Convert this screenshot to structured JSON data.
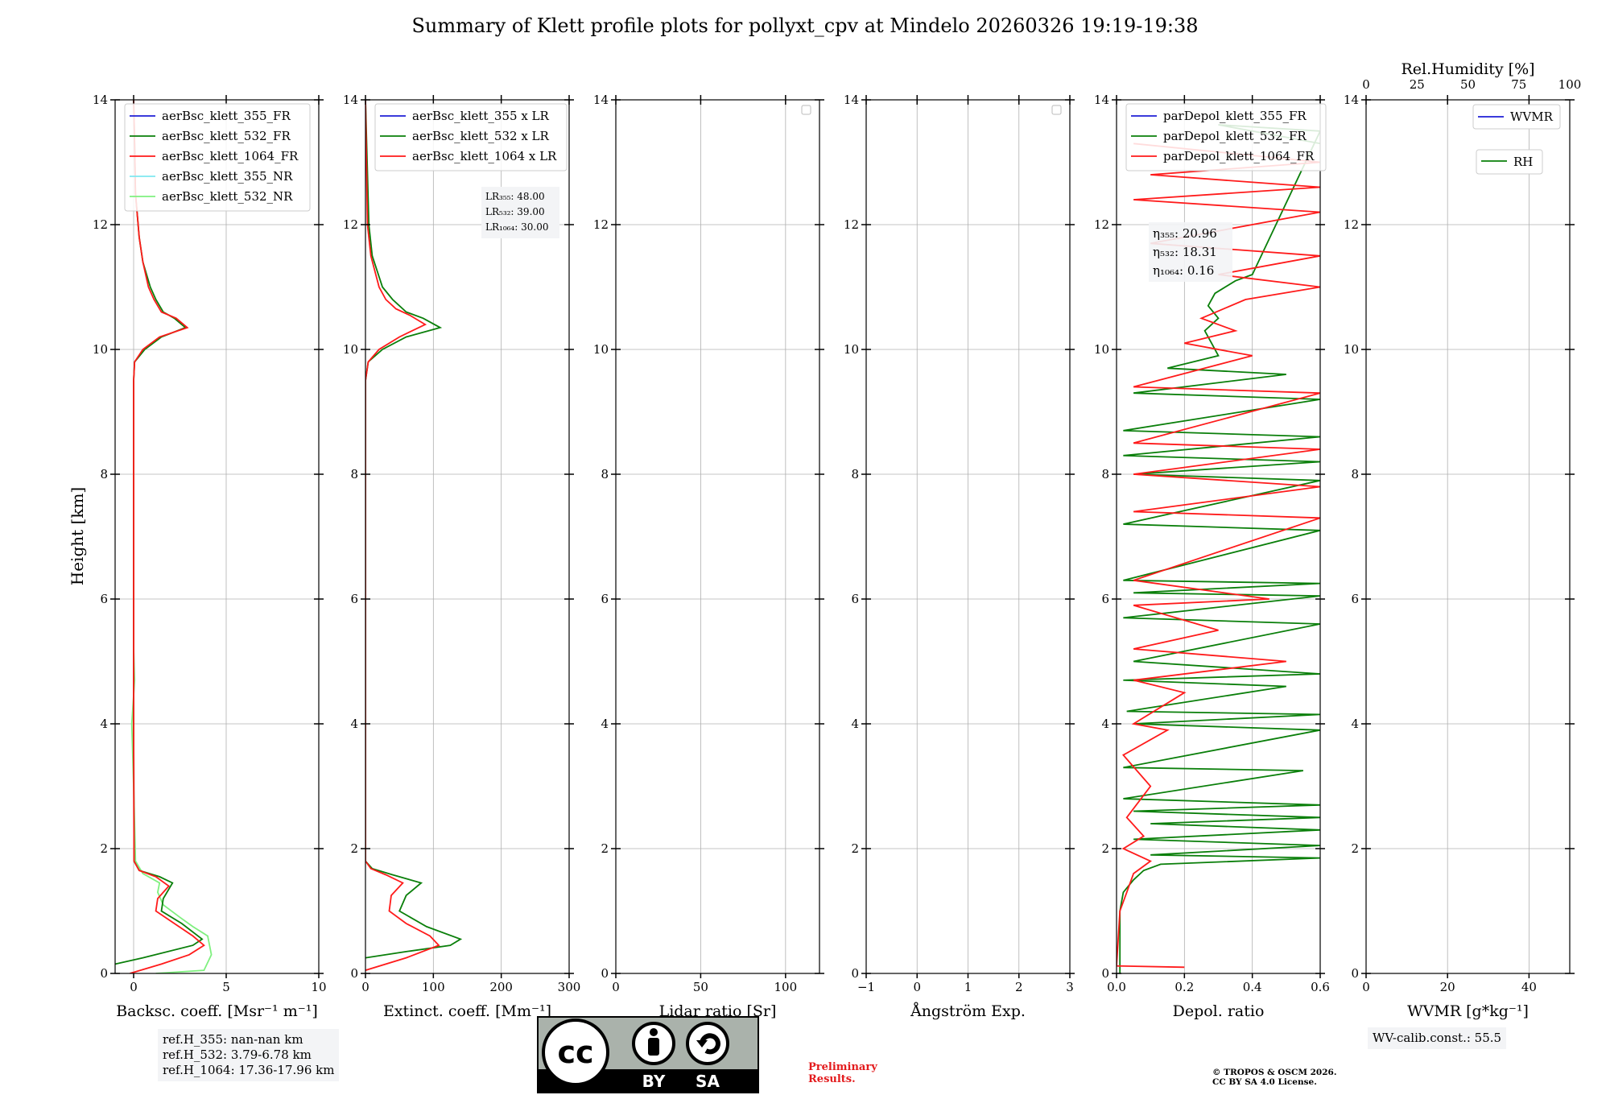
{
  "title": "Summary of Klett profile plots for pollyxt_cpv at Mindelo 20260326 19:19-19:38",
  "ylabel": "Height [km]",
  "colors": {
    "c355": "#1f1fd6",
    "c532": "#0a7f0a",
    "c1064": "#ff1a1a",
    "c355nr": "#7fe8f0",
    "c532nr": "#7ff07f"
  },
  "chart_data": [
    {
      "type": "line",
      "panel": "backscatter",
      "xlabel": "Backsc. coeff. [Msr⁻¹ m⁻¹]",
      "xlim": [
        -1,
        10
      ],
      "xticks": [
        0,
        5,
        10
      ],
      "ylim": [
        0,
        14
      ],
      "yticks": [
        0,
        2,
        4,
        6,
        8,
        10,
        12,
        14
      ],
      "legend": [
        "aerBsc_klett_355_FR",
        "aerBsc_klett_532_FR",
        "aerBsc_klett_1064_FR",
        "aerBsc_klett_355_NR",
        "aerBsc_klett_532_NR"
      ],
      "series": [
        {
          "name": "aerBsc_klett_532_NR",
          "color": "c532nr",
          "points": [
            [
              1.2,
              0
            ],
            [
              3.8,
              0.05
            ],
            [
              4.2,
              0.3
            ],
            [
              4.0,
              0.6
            ],
            [
              3.2,
              0.75
            ],
            [
              2.5,
              0.9
            ],
            [
              1.6,
              1.1
            ],
            [
              1.3,
              1.3
            ],
            [
              1.4,
              1.45
            ],
            [
              0.5,
              1.6
            ],
            [
              0.1,
              1.8
            ],
            [
              0.0,
              3
            ],
            [
              -0.1,
              4
            ],
            [
              0.05,
              4.7
            ],
            [
              0,
              5.2
            ]
          ]
        },
        {
          "name": "aerBsc_klett_532_FR",
          "color": "c532",
          "points": [
            [
              -1,
              0.15
            ],
            [
              0.5,
              0.25
            ],
            [
              3.2,
              0.45
            ],
            [
              3.7,
              0.55
            ],
            [
              2.6,
              0.8
            ],
            [
              1.5,
              1.0
            ],
            [
              1.6,
              1.2
            ],
            [
              2.1,
              1.45
            ],
            [
              1.4,
              1.55
            ],
            [
              0.3,
              1.65
            ],
            [
              0.02,
              1.8
            ],
            [
              0,
              4
            ],
            [
              0,
              8
            ],
            [
              0,
              9.5
            ],
            [
              0.05,
              9.8
            ],
            [
              0.6,
              10.0
            ],
            [
              1.5,
              10.2
            ],
            [
              2.8,
              10.35
            ],
            [
              2.2,
              10.5
            ],
            [
              1.6,
              10.6
            ],
            [
              1.2,
              10.8
            ],
            [
              0.9,
              11.0
            ],
            [
              0.5,
              11.4
            ],
            [
              0.3,
              11.8
            ],
            [
              0.1,
              12.5
            ],
            [
              0.05,
              13.3
            ],
            [
              0,
              14
            ]
          ]
        },
        {
          "name": "aerBsc_klett_1064_FR",
          "color": "c1064",
          "points": [
            [
              -0.2,
              0
            ],
            [
              1.5,
              0.15
            ],
            [
              3.0,
              0.3
            ],
            [
              3.8,
              0.45
            ],
            [
              3.2,
              0.6
            ],
            [
              2.2,
              0.8
            ],
            [
              1.2,
              1.0
            ],
            [
              1.3,
              1.2
            ],
            [
              1.9,
              1.4
            ],
            [
              1.2,
              1.55
            ],
            [
              0.3,
              1.65
            ],
            [
              0.02,
              1.8
            ],
            [
              0,
              4
            ],
            [
              0,
              8
            ],
            [
              0,
              9.5
            ],
            [
              0.05,
              9.8
            ],
            [
              0.5,
              10.0
            ],
            [
              1.4,
              10.2
            ],
            [
              2.9,
              10.35
            ],
            [
              2.3,
              10.5
            ],
            [
              1.5,
              10.6
            ],
            [
              1.1,
              10.8
            ],
            [
              0.8,
              11.0
            ],
            [
              0.5,
              11.4
            ],
            [
              0.3,
              11.8
            ],
            [
              0.1,
              12.5
            ],
            [
              0.05,
              13.3
            ],
            [
              0,
              14
            ]
          ]
        }
      ]
    },
    {
      "type": "line",
      "panel": "extinction",
      "xlabel": "Extinct. coeff. [Mm⁻¹]",
      "xlim": [
        0,
        300
      ],
      "xticks": [
        0,
        100,
        200,
        300
      ],
      "ylim": [
        0,
        14
      ],
      "yticks": [
        0,
        2,
        4,
        6,
        8,
        10,
        12,
        14
      ],
      "legend": [
        "aerBsc_klett_355 x LR",
        "aerBsc_klett_532 x LR",
        "aerBsc_klett_1064 x LR"
      ],
      "lr_labels": [
        "LR₃₅₅: 48.00",
        "LR₅₃₂: 39.00",
        "LR₁₀₆₄: 30.00"
      ],
      "series": [
        {
          "name": "aerBsc_klett_532 x LR",
          "color": "c532",
          "points": [
            [
              0,
              0.25
            ],
            [
              60,
              0.35
            ],
            [
              125,
              0.45
            ],
            [
              140,
              0.55
            ],
            [
              90,
              0.75
            ],
            [
              50,
              1.0
            ],
            [
              60,
              1.25
            ],
            [
              82,
              1.45
            ],
            [
              40,
              1.58
            ],
            [
              10,
              1.68
            ],
            [
              0,
              1.8
            ],
            [
              0,
              8
            ],
            [
              0,
              9.5
            ],
            [
              4,
              9.8
            ],
            [
              25,
              10.0
            ],
            [
              60,
              10.2
            ],
            [
              110,
              10.35
            ],
            [
              85,
              10.5
            ],
            [
              60,
              10.6
            ],
            [
              40,
              10.8
            ],
            [
              25,
              11.0
            ],
            [
              10,
              11.5
            ],
            [
              5,
              12.0
            ],
            [
              0,
              14
            ]
          ]
        },
        {
          "name": "aerBsc_klett_1064 x LR",
          "color": "c1064",
          "points": [
            [
              0,
              0.05
            ],
            [
              60,
              0.25
            ],
            [
              108,
              0.45
            ],
            [
              95,
              0.6
            ],
            [
              60,
              0.8
            ],
            [
              35,
              1.0
            ],
            [
              38,
              1.25
            ],
            [
              55,
              1.45
            ],
            [
              30,
              1.58
            ],
            [
              8,
              1.68
            ],
            [
              0,
              1.8
            ],
            [
              0,
              8
            ],
            [
              0,
              9.5
            ],
            [
              4,
              9.8
            ],
            [
              20,
              10.0
            ],
            [
              50,
              10.2
            ],
            [
              88,
              10.4
            ],
            [
              65,
              10.55
            ],
            [
              45,
              10.65
            ],
            [
              30,
              10.8
            ],
            [
              20,
              11.0
            ],
            [
              8,
              11.5
            ],
            [
              3,
              12.0
            ],
            [
              0,
              14
            ]
          ]
        }
      ]
    },
    {
      "type": "line",
      "panel": "lidar_ratio",
      "xlabel": "Lidar ratio [Sr]",
      "xlim": [
        0,
        120
      ],
      "xticks": [
        0,
        50,
        100
      ],
      "ylim": [
        0,
        14
      ],
      "yticks": [
        0,
        2,
        4,
        6,
        8,
        10,
        12,
        14
      ],
      "series": []
    },
    {
      "type": "line",
      "panel": "angstrom",
      "xlabel": "Ångström Exp.",
      "xlim": [
        -1,
        3
      ],
      "xticks": [
        -1,
        0,
        1,
        2,
        3
      ],
      "ylim": [
        0,
        14
      ],
      "yticks": [
        0,
        2,
        4,
        6,
        8,
        10,
        12,
        14
      ],
      "series": []
    },
    {
      "type": "line",
      "panel": "depolarization",
      "xlabel": "Depol. ratio",
      "xlim": [
        0,
        0.6
      ],
      "xticks": [
        0,
        0.2,
        0.4,
        0.6
      ],
      "xticklabels": [
        "0.0",
        "0.2",
        "0.4",
        "0.6"
      ],
      "ylim": [
        0,
        14
      ],
      "yticks": [
        0,
        2,
        4,
        6,
        8,
        10,
        12,
        14
      ],
      "legend": [
        "parDepol_klett_355_FR",
        "parDepol_klett_532_FR",
        "parDepol_klett_1064_FR"
      ],
      "eta_labels": [
        "η₃₅₅: 20.96",
        "η₅₃₂: 18.31",
        "η₁₀₆₄: 0.16"
      ],
      "series": [
        {
          "name": "parDepol_klett_532_FR",
          "color": "c532",
          "points": [
            [
              0.01,
              0
            ],
            [
              0.01,
              1.0
            ],
            [
              0.02,
              1.3
            ],
            [
              0.05,
              1.5
            ],
            [
              0.08,
              1.65
            ],
            [
              0.13,
              1.75
            ],
            [
              0.6,
              1.85
            ],
            [
              0.1,
              1.9
            ],
            [
              0.6,
              2.05
            ],
            [
              0.05,
              2.15
            ],
            [
              0.6,
              2.3
            ],
            [
              0.1,
              2.4
            ],
            [
              0.6,
              2.5
            ],
            [
              0.05,
              2.6
            ],
            [
              0.6,
              2.7
            ],
            [
              0.02,
              2.8
            ],
            [
              0.55,
              3.25
            ],
            [
              0.02,
              3.3
            ],
            [
              0.6,
              3.9
            ],
            [
              0.05,
              4.0
            ],
            [
              0.6,
              4.15
            ],
            [
              0.03,
              4.2
            ],
            [
              0.5,
              4.6
            ],
            [
              0.02,
              4.7
            ],
            [
              0.6,
              4.8
            ],
            [
              0.05,
              5.0
            ],
            [
              0.6,
              5.6
            ],
            [
              0.02,
              5.7
            ],
            [
              0.6,
              6.05
            ],
            [
              0.05,
              6.1
            ],
            [
              0.6,
              6.25
            ],
            [
              0.02,
              6.3
            ],
            [
              0.6,
              7.1
            ],
            [
              0.02,
              7.2
            ],
            [
              0.6,
              7.9
            ],
            [
              0.05,
              8.0
            ],
            [
              0.6,
              8.2
            ],
            [
              0.02,
              8.3
            ],
            [
              0.6,
              8.6
            ],
            [
              0.02,
              8.7
            ],
            [
              0.6,
              9.2
            ],
            [
              0.05,
              9.3
            ],
            [
              0.5,
              9.6
            ],
            [
              0.15,
              9.7
            ],
            [
              0.3,
              9.9
            ],
            [
              0.28,
              10.1
            ],
            [
              0.26,
              10.3
            ],
            [
              0.3,
              10.5
            ],
            [
              0.27,
              10.7
            ],
            [
              0.29,
              10.9
            ],
            [
              0.35,
              11.1
            ],
            [
              0.4,
              11.2
            ],
            [
              0.6,
              13.5
            ],
            [
              0.3,
              13.6
            ],
            [
              0.6,
              13.3
            ]
          ]
        },
        {
          "name": "parDepol_klett_1064_FR",
          "color": "c1064",
          "points": [
            [
              0.2,
              0.1
            ],
            [
              0.0,
              0.12
            ],
            [
              0.01,
              1.0
            ],
            [
              0.03,
              1.3
            ],
            [
              0.05,
              1.6
            ],
            [
              0.1,
              1.8
            ],
            [
              0.02,
              2.0
            ],
            [
              0.08,
              2.2
            ],
            [
              0.03,
              2.5
            ],
            [
              0.1,
              3.0
            ],
            [
              0.02,
              3.5
            ],
            [
              0.15,
              3.9
            ],
            [
              0.05,
              4.0
            ],
            [
              0.2,
              4.5
            ],
            [
              0.05,
              4.7
            ],
            [
              0.5,
              5.0
            ],
            [
              0.05,
              5.2
            ],
            [
              0.3,
              5.5
            ],
            [
              0.05,
              5.9
            ],
            [
              0.45,
              6.0
            ],
            [
              0.05,
              6.3
            ],
            [
              0.6,
              7.3
            ],
            [
              0.05,
              7.4
            ],
            [
              0.6,
              7.8
            ],
            [
              0.05,
              8.0
            ],
            [
              0.6,
              8.4
            ],
            [
              0.05,
              8.5
            ],
            [
              0.6,
              9.3
            ],
            [
              0.05,
              9.4
            ],
            [
              0.4,
              9.9
            ],
            [
              0.2,
              10.1
            ],
            [
              0.35,
              10.3
            ],
            [
              0.25,
              10.5
            ],
            [
              0.38,
              10.8
            ],
            [
              0.6,
              11.0
            ],
            [
              0.3,
              11.2
            ],
            [
              0.6,
              11.5
            ],
            [
              0.1,
              11.7
            ],
            [
              0.6,
              12.2
            ],
            [
              0.05,
              12.4
            ],
            [
              0.6,
              12.6
            ],
            [
              0.1,
              12.8
            ],
            [
              0.6,
              13.0
            ],
            [
              0.05,
              13.3
            ]
          ]
        }
      ]
    },
    {
      "type": "line",
      "panel": "wvmr",
      "xlabel": "WVMR [g*kg⁻¹]",
      "top_xlabel": "Rel.Humidity [%]",
      "xlim": [
        0,
        50
      ],
      "xticks": [
        0,
        20,
        40
      ],
      "top_xlim": [
        0,
        100
      ],
      "top_xticks": [
        0,
        25,
        50,
        75,
        100
      ],
      "ylim": [
        0,
        14
      ],
      "yticks": [
        0,
        2,
        4,
        6,
        8,
        10,
        12,
        14
      ],
      "legend": [
        "WVMR",
        "RH"
      ],
      "series": []
    }
  ],
  "ref_box": [
    "ref.H_355: nan-nan km",
    "ref.H_532: 3.79-6.78 km",
    "ref.H_1064: 17.36-17.96 km"
  ],
  "wv_box": "WV-calib.const.: 55.5",
  "license": {
    "cc": "cc",
    "by": "BY",
    "sa": "SA"
  },
  "preliminary": [
    "Preliminary",
    "Results."
  ],
  "copyright": [
    "© TROPOS & OSCM 2026.",
    "CC BY SA 4.0 License."
  ]
}
